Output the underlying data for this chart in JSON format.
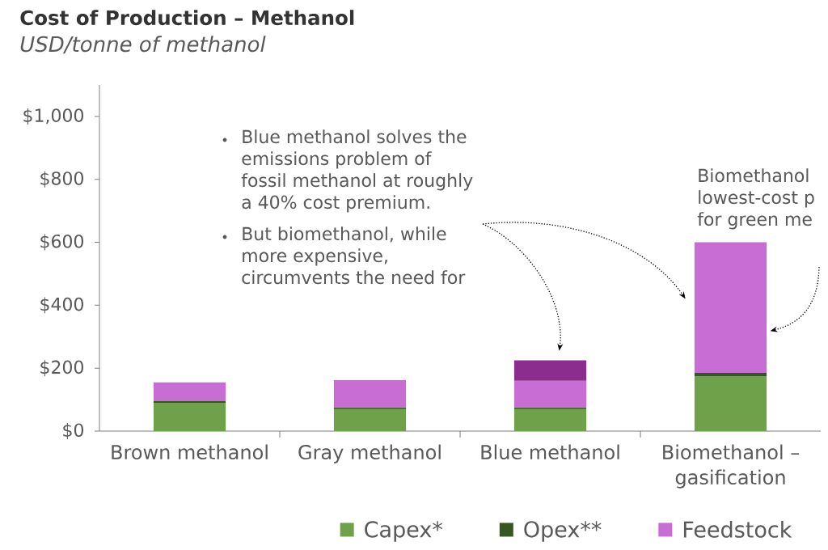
{
  "chart_data": {
    "type": "bar",
    "title": "Cost of Production – Methanol",
    "subtitle": "USD/tonne of methanol",
    "categories": [
      "Brown methanol",
      "Gray methanol",
      "Blue methanol",
      "Biomethanol – gasification"
    ],
    "stacked": true,
    "series": [
      {
        "name": "Capex*",
        "color": "#6fa04a",
        "values": [
          90,
          70,
          70,
          175
        ]
      },
      {
        "name": "Opex**",
        "color": "#375623",
        "values": [
          5,
          5,
          5,
          10
        ]
      },
      {
        "name": "Feedstock",
        "color": "#c86dd3",
        "values": [
          60,
          87,
          85,
          415
        ]
      },
      {
        "color": "#8b2c8f",
        "values": [
          null,
          null,
          65,
          null
        ]
      }
    ],
    "ylim": [
      0,
      1100
    ],
    "yticks": [
      {
        "value": 0,
        "label": "$0"
      },
      {
        "value": 200,
        "label": "$200"
      },
      {
        "value": 400,
        "label": "$400"
      },
      {
        "value": 600,
        "label": "$600"
      },
      {
        "value": 800,
        "label": "$800"
      },
      {
        "value": 1000,
        "label": "$1,000"
      }
    ],
    "legend": "bottom",
    "annotations": [
      "Blue methanol solves the emissions problem of fossil methanol at roughly a 40% cost premium.",
      "But biomethanol, while more expensive, circumvents the need for",
      "Biomethanol lowest-cost p for green me"
    ]
  }
}
